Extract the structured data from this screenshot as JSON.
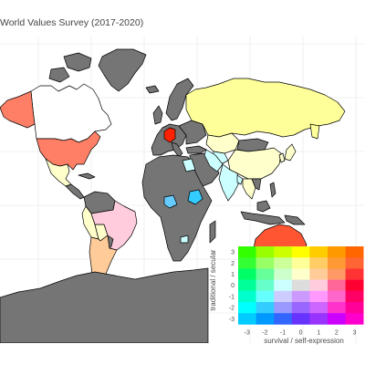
{
  "title": "World Values Survey (2017-2020)",
  "colors": {
    "background": "#ffffff",
    "grid": "#ebebeb",
    "no_data": "#757575",
    "border": "#000000"
  },
  "legend": {
    "xlabel": "survival / self-expression",
    "ylabel": "traditional / secular",
    "x_ticks": [
      "-3",
      "-2",
      "-1",
      "0",
      "1",
      "2",
      "3"
    ],
    "y_ticks": [
      "3",
      "2",
      "1",
      "0",
      "-1",
      "-2",
      "-3"
    ],
    "grid_colors": [
      [
        "#33ff00",
        "#99ff00",
        "#ccff00",
        "#ffff00",
        "#ffcc00",
        "#ff9900",
        "#ff6600"
      ],
      [
        "#33ff33",
        "#99ff66",
        "#ccff99",
        "#ffff99",
        "#ffcc66",
        "#ff9933",
        "#ff6633"
      ],
      [
        "#00ff66",
        "#66ff99",
        "#ccffcc",
        "#ffffcc",
        "#ffcc99",
        "#ff9966",
        "#ff3333"
      ],
      [
        "#00ff99",
        "#66ffcc",
        "#ccffff",
        "#dddddd",
        "#ffccdd",
        "#ff6699",
        "#ff0033"
      ],
      [
        "#00ffcc",
        "#66ffff",
        "#ccccff",
        "#cc99ff",
        "#ff99ff",
        "#ff66cc",
        "#ff0066"
      ],
      [
        "#00ffff",
        "#33ccff",
        "#9999ff",
        "#9966ff",
        "#cc66ff",
        "#ff33cc",
        "#ff0099"
      ],
      [
        "#00ccff",
        "#0099ff",
        "#3366ff",
        "#6633ff",
        "#9933ff",
        "#cc00ff",
        "#ff00cc"
      ]
    ]
  },
  "countries": {
    "canada": "#ffffff",
    "usa": "#ff7f66",
    "mexico": "#ffffcc",
    "brazil": "#ffccdd",
    "argentina": "#ffcc99",
    "australia": "#ff5533",
    "russia": "#ffff99",
    "china": "#ffffcc",
    "germany": "#ff2200",
    "india": "#ccffff",
    "iran": "#ccffff",
    "kazakhstan": "#ffffcc",
    "ethiopia": "#33ccff",
    "nigeria": "#66ccff"
  }
}
